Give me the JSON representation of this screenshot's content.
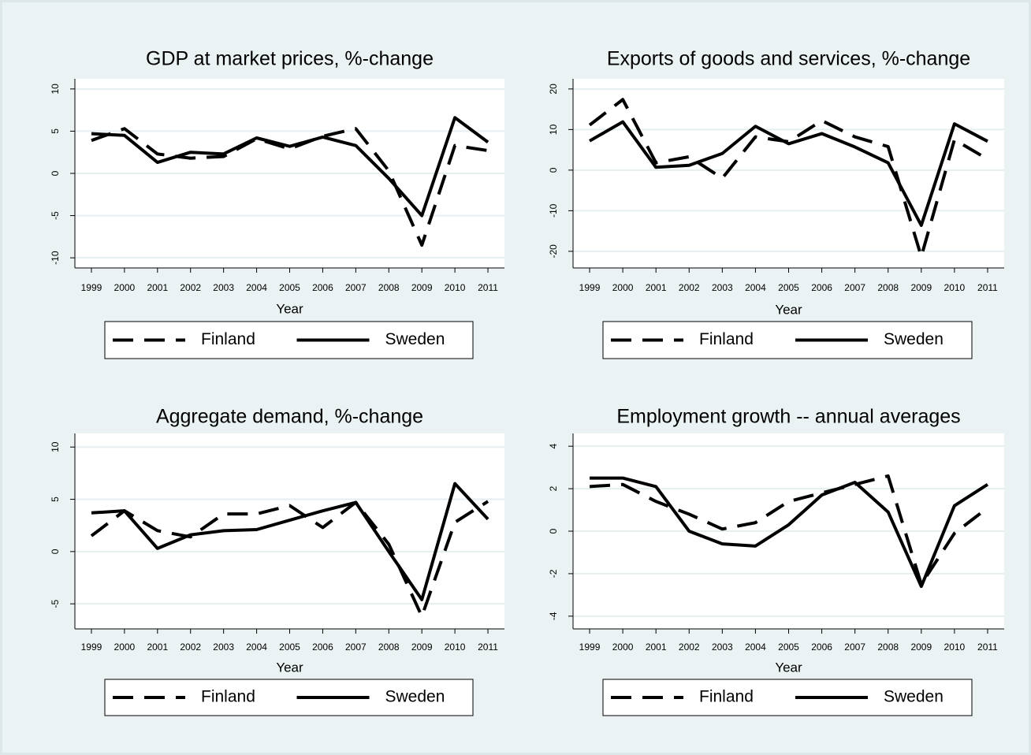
{
  "chart_data": [
    {
      "type": "line",
      "title": "GDP at market prices, %-change",
      "x_label": "Year",
      "x": [
        1999,
        2000,
        2001,
        2002,
        2003,
        2004,
        2005,
        2006,
        2007,
        2008,
        2009,
        2010,
        2011
      ],
      "xlim": [
        1998.5,
        2011.5
      ],
      "xticks": [
        1999,
        2000,
        2001,
        2002,
        2003,
        2004,
        2005,
        2006,
        2007,
        2008,
        2009,
        2010,
        2011
      ],
      "ylim": [
        -11.2,
        11.2
      ],
      "yticks": [
        -10,
        -5,
        0,
        5,
        10
      ],
      "grid": true,
      "series": [
        {
          "name": "Finland",
          "color": "#000000",
          "line_style": "dash",
          "values": [
            3.9,
            5.3,
            2.3,
            1.8,
            2.0,
            4.1,
            2.9,
            4.4,
            5.3,
            0.3,
            -8.5,
            3.3,
            2.7
          ]
        },
        {
          "name": "Sweden",
          "color": "#000000",
          "line_style": "solid",
          "values": [
            4.7,
            4.5,
            1.3,
            2.5,
            2.3,
            4.2,
            3.2,
            4.3,
            3.3,
            -0.6,
            -5.0,
            6.6,
            3.7
          ]
        }
      ]
    },
    {
      "type": "line",
      "title": "Exports of goods and services, %-change",
      "x_label": "Year",
      "x": [
        1999,
        2000,
        2001,
        2002,
        2003,
        2004,
        2005,
        2006,
        2007,
        2008,
        2009,
        2010,
        2011
      ],
      "xlim": [
        1998.5,
        2011.5
      ],
      "xticks": [
        1999,
        2000,
        2001,
        2002,
        2003,
        2004,
        2005,
        2006,
        2007,
        2008,
        2009,
        2010,
        2011
      ],
      "ylim": [
        -24.1,
        22.5
      ],
      "yticks": [
        -20,
        -10,
        0,
        10,
        20
      ],
      "grid": true,
      "series": [
        {
          "name": "Finland",
          "color": "#000000",
          "line_style": "dash",
          "values": [
            11.1,
            17.4,
            1.8,
            3.3,
            -2.0,
            8.2,
            7.0,
            12.2,
            8.2,
            5.8,
            -21.3,
            7.5,
            2.7
          ]
        },
        {
          "name": "Sweden",
          "color": "#000000",
          "line_style": "solid",
          "values": [
            7.2,
            11.9,
            0.7,
            1.2,
            4.1,
            10.8,
            6.5,
            9.0,
            5.7,
            1.8,
            -13.6,
            11.4,
            7.1
          ]
        }
      ]
    },
    {
      "type": "line",
      "title": "Aggregate demand, %-change",
      "x_label": "Year",
      "x": [
        1999,
        2000,
        2001,
        2002,
        2003,
        2004,
        2005,
        2006,
        2007,
        2008,
        2009,
        2010,
        2011
      ],
      "xlim": [
        1998.5,
        2011.5
      ],
      "xticks": [
        1999,
        2000,
        2001,
        2002,
        2003,
        2004,
        2005,
        2006,
        2007,
        2008,
        2009,
        2010,
        2011
      ],
      "ylim": [
        -7.4,
        11.3
      ],
      "yticks": [
        -5,
        0,
        5,
        10
      ],
      "grid": true,
      "series": [
        {
          "name": "Finland",
          "color": "#000000",
          "line_style": "dash",
          "values": [
            1.5,
            3.9,
            2.0,
            1.4,
            3.6,
            3.6,
            4.4,
            2.3,
            4.7,
            0.7,
            -6.2,
            2.8,
            4.8
          ]
        },
        {
          "name": "Sweden",
          "color": "#000000",
          "line_style": "solid",
          "values": [
            3.7,
            3.9,
            0.3,
            1.6,
            2.0,
            2.1,
            3.0,
            3.9,
            4.7,
            0.0,
            -4.6,
            6.5,
            3.1
          ]
        }
      ]
    },
    {
      "type": "line",
      "title": "Employment growth -- annual averages",
      "x_label": "Year",
      "x": [
        1999,
        2000,
        2001,
        2002,
        2003,
        2004,
        2005,
        2006,
        2007,
        2008,
        2009,
        2010,
        2011
      ],
      "xlim": [
        1998.5,
        2011.5
      ],
      "xticks": [
        1999,
        2000,
        2001,
        2002,
        2003,
        2004,
        2005,
        2006,
        2007,
        2008,
        2009,
        2010,
        2011
      ],
      "ylim": [
        -4.6,
        4.6
      ],
      "yticks": [
        -4,
        -2,
        0,
        2,
        4
      ],
      "grid": true,
      "series": [
        {
          "name": "Finland",
          "color": "#000000",
          "line_style": "dash",
          "values": [
            2.1,
            2.2,
            1.4,
            0.8,
            0.1,
            0.4,
            1.4,
            1.8,
            2.2,
            2.6,
            -2.5,
            -0.1,
            1.1
          ]
        },
        {
          "name": "Sweden",
          "color": "#000000",
          "line_style": "solid",
          "values": [
            2.5,
            2.5,
            2.1,
            0.0,
            -0.6,
            -0.7,
            0.3,
            1.7,
            2.3,
            0.9,
            -2.6,
            1.2,
            2.2
          ]
        }
      ]
    }
  ]
}
